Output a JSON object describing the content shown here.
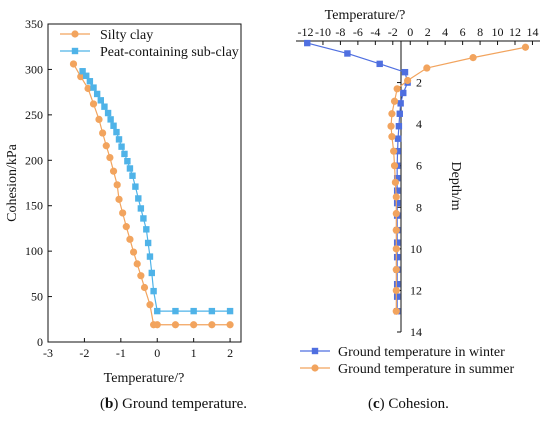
{
  "colors": {
    "orange": "#F2A45E",
    "orange_dark": "#E8904A",
    "blue": "#4FB3E8",
    "blue_dark": "#4F6FE0",
    "axis": "#111111"
  },
  "captions": {
    "left": {
      "tag": "b",
      "text": "Ground temperature."
    },
    "right": {
      "tag": "c",
      "text": "Cohesion."
    }
  },
  "chart_data": [
    {
      "type": "line",
      "xlabel": "Temperature/?",
      "ylabel": "Cohesion/kPa",
      "xlim": [
        -3,
        2.3
      ],
      "ylim": [
        0,
        350
      ],
      "xticks": [
        -3,
        -2,
        -1,
        0,
        1,
        2
      ],
      "yticks": [
        0,
        50,
        100,
        150,
        200,
        250,
        300,
        350
      ],
      "legend_position": "top-right",
      "series": [
        {
          "name": "Silty clay",
          "marker": "circle",
          "color": "#F2A45E",
          "x": [
            -2.3,
            -2.1,
            -1.9,
            -1.75,
            -1.6,
            -1.5,
            -1.4,
            -1.3,
            -1.2,
            -1.1,
            -1.05,
            -0.95,
            -0.85,
            -0.75,
            -0.65,
            -0.55,
            -0.45,
            -0.35,
            -0.2,
            -0.1,
            0,
            0.5,
            1,
            1.5,
            2
          ],
          "y": [
            306,
            292,
            279,
            262,
            245,
            230,
            216,
            203,
            188,
            173,
            157,
            142,
            127,
            113,
            99,
            86,
            73,
            60,
            41,
            19,
            19,
            19,
            19,
            19,
            19
          ]
        },
        {
          "name": "Peat-containing sub-clay",
          "marker": "square",
          "color": "#4FB3E8",
          "x": [
            -2.05,
            -1.95,
            -1.85,
            -1.75,
            -1.65,
            -1.55,
            -1.45,
            -1.35,
            -1.28,
            -1.2,
            -1.12,
            -1.05,
            -0.98,
            -0.9,
            -0.82,
            -0.75,
            -0.68,
            -0.6,
            -0.52,
            -0.45,
            -0.38,
            -0.3,
            -0.25,
            -0.2,
            -0.15,
            -0.1,
            0,
            0.5,
            1,
            1.5,
            2
          ],
          "y": [
            298,
            293,
            287,
            280,
            273,
            266,
            259,
            252,
            245,
            238,
            231,
            223,
            215,
            207,
            199,
            191,
            183,
            171,
            158,
            147,
            136,
            124,
            109,
            94,
            76,
            56,
            34,
            34,
            34,
            34,
            34
          ]
        }
      ]
    },
    {
      "type": "line",
      "title": "Temperature/?",
      "ylabel": "Depth/m",
      "xlim": [
        -13,
        15
      ],
      "ylim": [
        0,
        14
      ],
      "x_axis_position": "top",
      "y_axis_position": "right",
      "y_inverted": true,
      "xticks": [
        -12,
        -10,
        -8,
        -6,
        -4,
        -2,
        0,
        2,
        4,
        6,
        8,
        10,
        12,
        14
      ],
      "yticks": [
        2,
        4,
        6,
        8,
        10,
        12,
        14
      ],
      "legend_position": "bottom",
      "series": [
        {
          "name": "Ground temperature in winter",
          "marker": "square",
          "color": "#4F6FE0",
          "x": [
            -11.8,
            -7.2,
            -3.5,
            -0.6,
            -0.3,
            -0.8,
            -1.1,
            -1.2,
            -1.3,
            -1.4,
            -1.45,
            -1.5,
            -1.5,
            -1.5,
            -1.5,
            -1.5,
            -1.5,
            -1.5,
            -1.5,
            -1.5,
            -1.5,
            -1.5,
            -1.5
          ],
          "y": [
            0.1,
            0.6,
            1.1,
            1.5,
            2.0,
            2.5,
            3.0,
            3.5,
            4.1,
            4.7,
            5.3,
            6.0,
            6.6,
            7.2,
            7.8,
            8.4,
            9.1,
            9.7,
            10.4,
            11.0,
            11.7,
            12.3,
            13.0
          ]
        },
        {
          "name": "Ground temperature in summer",
          "marker": "circle",
          "color": "#F2A45E",
          "x": [
            13.2,
            7.2,
            1.9,
            -0.3,
            -1.5,
            -1.8,
            -2.1,
            -2.2,
            -2.1,
            -1.9,
            -1.8,
            -1.7,
            -1.6,
            -1.6,
            -1.6,
            -1.6,
            -1.6,
            -1.6,
            -1.6
          ],
          "y": [
            0.3,
            0.8,
            1.3,
            1.9,
            2.3,
            2.9,
            3.5,
            4.1,
            4.6,
            5.3,
            6.0,
            6.8,
            7.5,
            8.3,
            9.1,
            10.0,
            11.0,
            12.0,
            13.0
          ]
        }
      ]
    }
  ]
}
